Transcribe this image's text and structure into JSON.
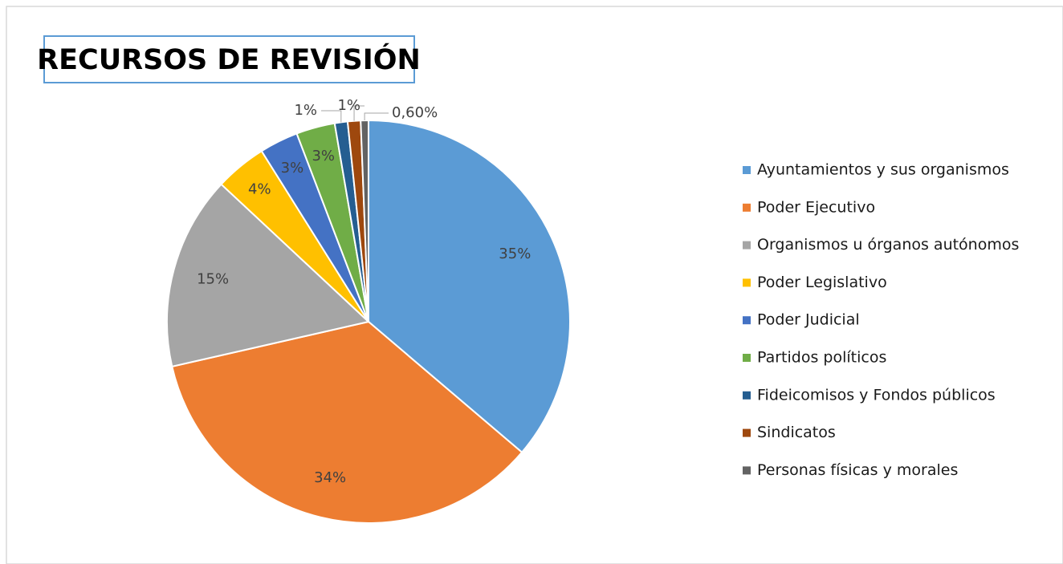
{
  "chart_data": {
    "type": "pie",
    "title": "RECURSOS DE REVISIÓN",
    "categories": [
      "Ayuntamientos y sus organismos",
      "Poder Ejecutivo",
      "Organismos u órganos autónomos",
      "Poder Legislativo",
      "Poder Judicial",
      "Partidos políticos",
      "Fideicomisos y Fondos públicos",
      "Sindicatos",
      "Personas físicas y morales"
    ],
    "values": [
      35,
      34,
      15,
      4,
      3,
      3,
      1,
      1,
      0.6
    ],
    "value_labels": [
      "35%",
      "34%",
      "15%",
      "4%",
      "3%",
      "3%",
      "1%",
      "1%",
      "0,60%"
    ],
    "colors": [
      "#5b9bd5",
      "#ed7d31",
      "#a5a5a5",
      "#ffc000",
      "#4472c4",
      "#70ad47",
      "#255e91",
      "#9e480e",
      "#636363"
    ],
    "legend": "right"
  }
}
